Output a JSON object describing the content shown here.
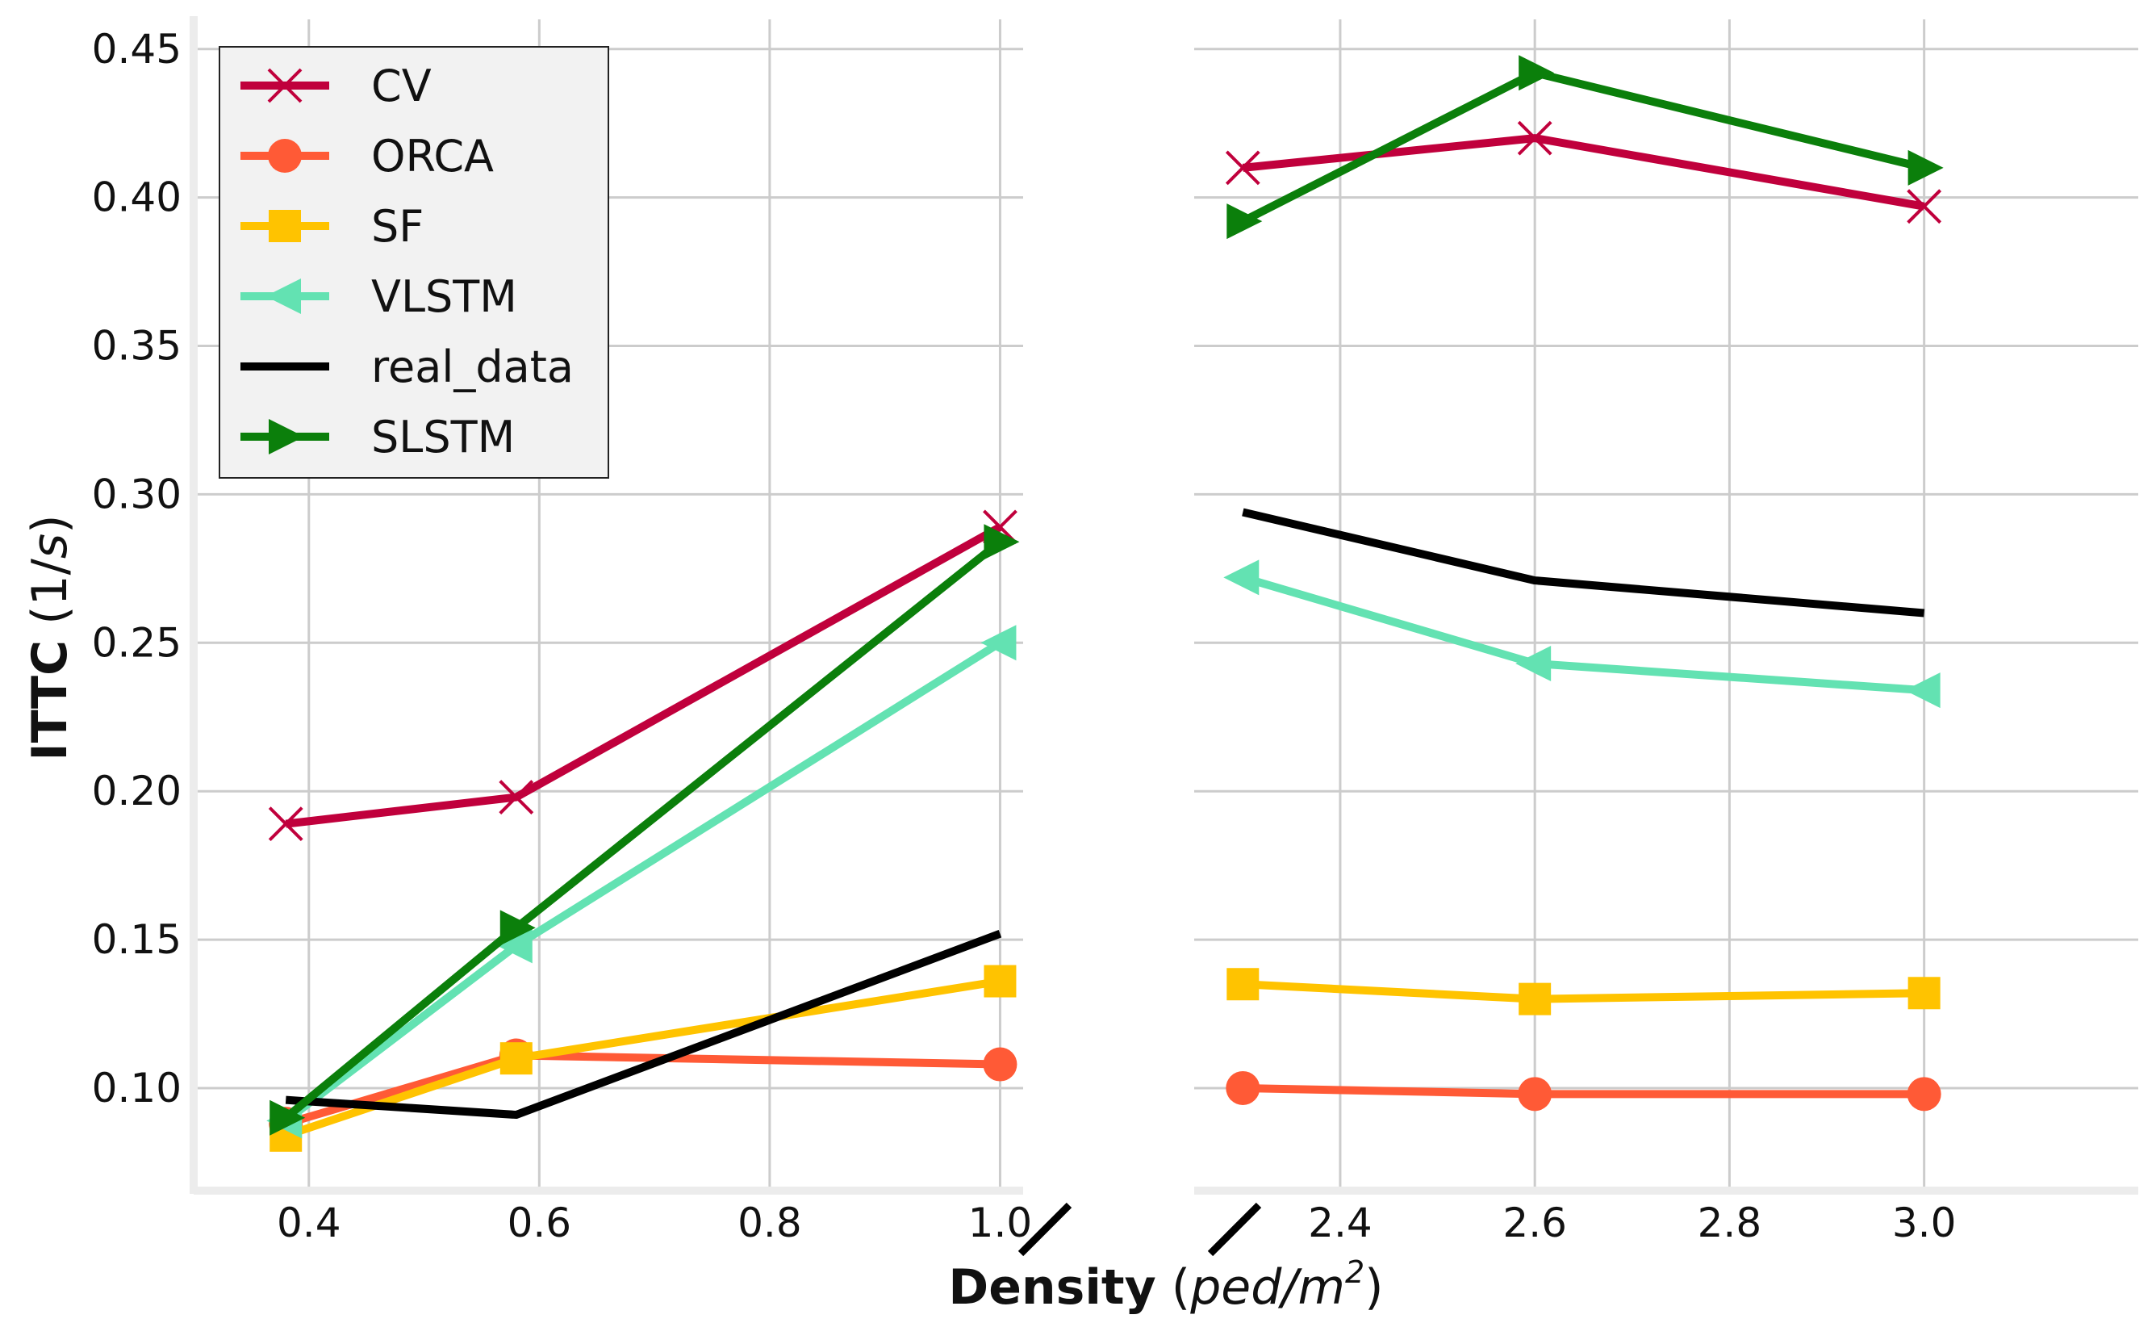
{
  "chart_data": {
    "type": "line",
    "title": "",
    "xlabel": {
      "bold": "Density",
      "unit_open": " (",
      "unit_italic": "ped/m",
      "unit_sup": "2",
      "unit_close": ")"
    },
    "ylabel": {
      "bold": "ITTC",
      "unit_open": " (1/",
      "unit_italic": "s",
      "unit_close": ")"
    },
    "broken_x_axis": true,
    "ylim": [
      0.066,
      0.46
    ],
    "yticks": [
      0.1,
      0.15,
      0.2,
      0.25,
      0.3,
      0.35,
      0.4,
      0.45
    ],
    "ytick_labels": [
      "0.10",
      "0.15",
      "0.20",
      "0.25",
      "0.30",
      "0.35",
      "0.40",
      "0.45"
    ],
    "panels": [
      {
        "name": "low-density",
        "xlim": [
          0.3,
          1.02
        ],
        "xticks": [
          0.4,
          0.6,
          0.8,
          1.0
        ],
        "xtick_labels": [
          "0.4",
          "0.6",
          "0.8",
          "1.0"
        ],
        "x": [
          0.38,
          0.58,
          1.0
        ]
      },
      {
        "name": "high-density",
        "xlim": [
          2.25,
          3.22
        ],
        "xticks": [
          2.4,
          2.6,
          2.8,
          3.0
        ],
        "xtick_labels": [
          "2.4",
          "2.6",
          "2.8",
          "3.0"
        ],
        "x": [
          2.3,
          2.6,
          3.0
        ]
      }
    ],
    "series": [
      {
        "name": "CV",
        "color": "#c0003c",
        "marker": "x",
        "values": [
          [
            0.189,
            0.198,
            0.289
          ],
          [
            0.41,
            0.42,
            0.397
          ]
        ]
      },
      {
        "name": "ORCA",
        "color": "#ff5a36",
        "marker": "circle",
        "values": [
          [
            0.088,
            0.111,
            0.108
          ],
          [
            0.1,
            0.098,
            0.098
          ]
        ]
      },
      {
        "name": "SF",
        "color": "#ffc300",
        "marker": "square",
        "values": [
          [
            0.084,
            0.11,
            0.136
          ],
          [
            0.135,
            0.13,
            0.132
          ]
        ]
      },
      {
        "name": "VLSTM",
        "color": "#63e2b2",
        "marker": "triangle-left",
        "values": [
          [
            0.089,
            0.148,
            0.25
          ],
          [
            0.272,
            0.243,
            0.234
          ]
        ]
      },
      {
        "name": "real_data",
        "color": "#000000",
        "marker": "none",
        "values": [
          [
            0.096,
            0.091,
            0.152
          ],
          [
            0.294,
            0.271,
            0.26
          ]
        ]
      },
      {
        "name": "SLSTM",
        "color": "#0b7f0b",
        "marker": "triangle-right",
        "values": [
          [
            0.09,
            0.154,
            0.284
          ],
          [
            0.392,
            0.442,
            0.41
          ]
        ]
      }
    ],
    "legend": {
      "position": "top-left",
      "entries": [
        "CV",
        "ORCA",
        "SF",
        "VLSTM",
        "real_data",
        "SLSTM"
      ]
    }
  }
}
